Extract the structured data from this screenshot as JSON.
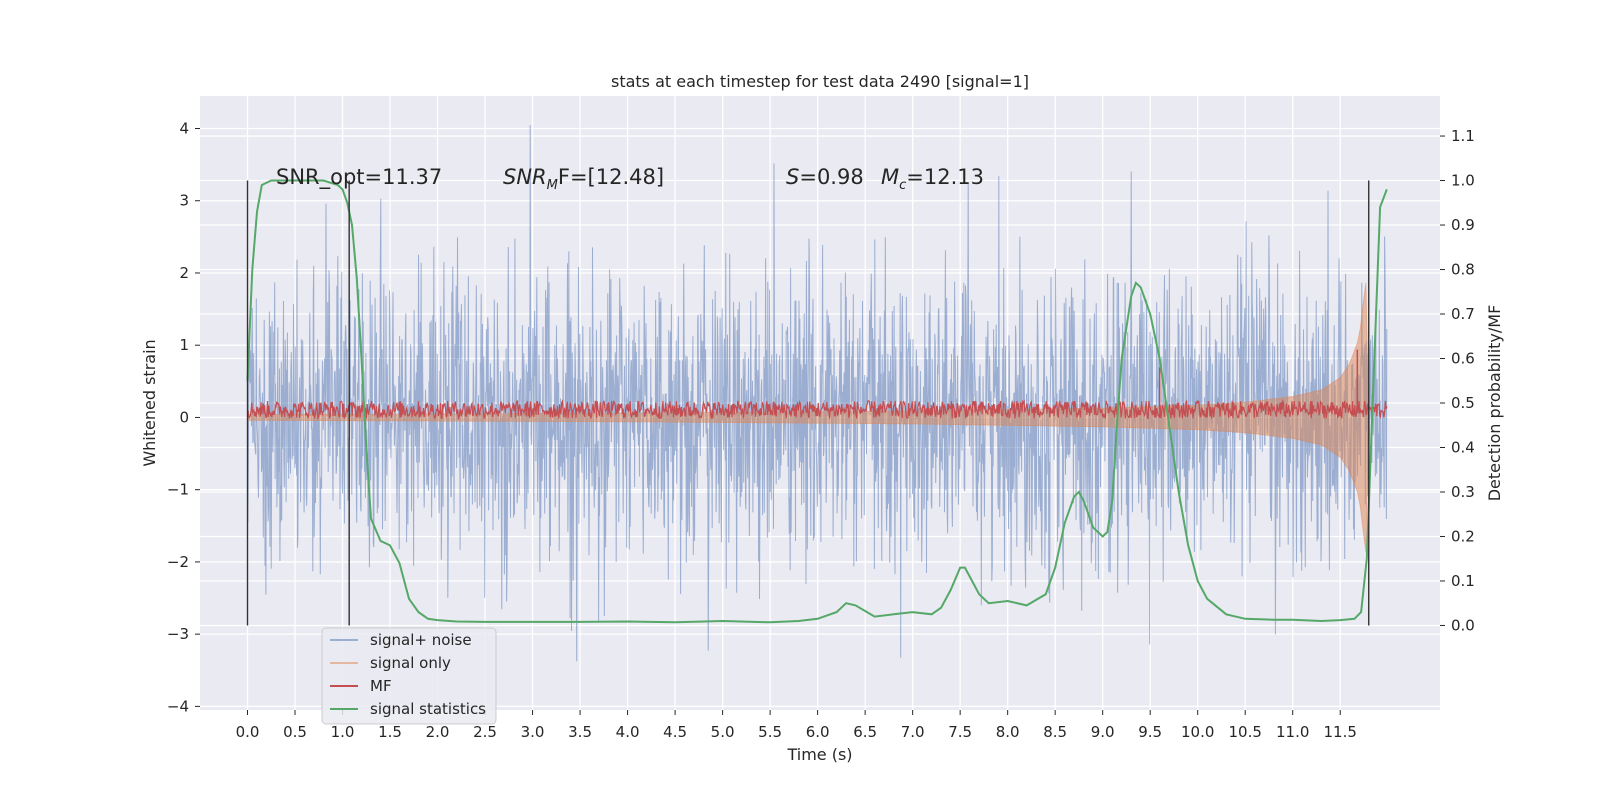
{
  "chart_data": {
    "type": "line",
    "title": "stats at each timestep for test data 2490 [signal=1]",
    "xlabel": "Time (s)",
    "ylabel_left": "Whitened strain",
    "ylabel_right": "Detection probability/MF",
    "xlim": [
      -0.5,
      12.55
    ],
    "ylim_left": [
      -4.05,
      4.45
    ],
    "ylim_right": [
      -0.19,
      1.19
    ],
    "x_ticks": [
      0.0,
      0.5,
      1.0,
      1.5,
      2.0,
      2.5,
      3.0,
      3.5,
      4.0,
      4.5,
      5.0,
      5.5,
      6.0,
      6.5,
      7.0,
      7.5,
      8.0,
      8.5,
      9.0,
      9.5,
      10.0,
      10.5,
      11.0,
      11.5
    ],
    "x_tick_labels": [
      "0.0",
      "0.5",
      "1.0",
      "1.5",
      "2.0",
      "2.5",
      "3.0",
      "3.5",
      "4.0",
      "4.5",
      "5.0",
      "5.5",
      "6.0",
      "6.5",
      "7.0",
      "7.5",
      "8.0",
      "8.5",
      "9.0",
      "9.5",
      "10.0",
      "10.5",
      "11.0",
      "11.5"
    ],
    "y_left_ticks": [
      4,
      3,
      2,
      1,
      0,
      -1,
      -2,
      -3,
      -4
    ],
    "y_left_tick_labels": [
      "4",
      "3",
      "2",
      "1",
      "0",
      "−1",
      "−2",
      "−3",
      "−4"
    ],
    "y_right_ticks": [
      1.1,
      1.0,
      0.9,
      0.8,
      0.7,
      0.6,
      0.5,
      0.4,
      0.3,
      0.2,
      0.1,
      0.0
    ],
    "y_right_tick_labels": [
      "1.1",
      "1.0",
      "0.9",
      "0.8",
      "0.7",
      "0.6",
      "0.5",
      "0.4",
      "0.3",
      "0.2",
      "0.1",
      "0.0"
    ],
    "grid": true,
    "legend_position": "lower-left",
    "annotations": {
      "snr_opt": "SNR_opt=11.37",
      "snr_mf_symbol": "SNR",
      "snr_mf_sub": "M",
      "snr_mf_value": "F=[12.48]",
      "s_symbol": "S",
      "s_value": "=0.98",
      "mc_symbol": "M",
      "mc_sub": "c",
      "mc_value": "=12.13"
    },
    "vertical_markers": [
      0.0,
      1.07,
      11.8
    ],
    "series": [
      {
        "name": "signal+ noise",
        "color": "#4c72b0",
        "axis": "left",
        "style": "noise",
        "t_start": 0.0,
        "t_end": 11.99,
        "typical_range": [
          -1.6,
          1.6
        ],
        "peak_range": [
          -3.7,
          4.1
        ]
      },
      {
        "name": "signal only",
        "color": "#dd8452",
        "axis": "left",
        "style": "chirp",
        "envelope_t": [
          0.0,
          4.0,
          7.0,
          9.0,
          10.0,
          10.5,
          11.0,
          11.3,
          11.5,
          11.6,
          11.7,
          11.77,
          11.8
        ],
        "envelope_amp": [
          0.04,
          0.06,
          0.09,
          0.13,
          0.17,
          0.21,
          0.29,
          0.38,
          0.55,
          0.75,
          1.1,
          1.9,
          0.0
        ]
      },
      {
        "name": "MF",
        "color": "#c44e52",
        "axis": "right",
        "style": "mf",
        "baseline": 0.485,
        "band": 0.02,
        "spikes_x": [
          9.6,
          11.68
        ],
        "spikes_y": [
          0.58,
          0.62
        ]
      },
      {
        "name": "signal statistics",
        "color": "#55a868",
        "axis": "right",
        "style": "line",
        "x": [
          0.0,
          0.05,
          0.1,
          0.15,
          0.25,
          0.4,
          0.6,
          0.8,
          0.95,
          1.0,
          1.05,
          1.1,
          1.15,
          1.2,
          1.25,
          1.3,
          1.4,
          1.5,
          1.6,
          1.7,
          1.8,
          1.9,
          2.0,
          2.2,
          2.5,
          3.0,
          3.5,
          4.0,
          4.5,
          5.0,
          5.5,
          5.8,
          6.0,
          6.2,
          6.3,
          6.4,
          6.6,
          6.8,
          7.0,
          7.2,
          7.3,
          7.4,
          7.5,
          7.55,
          7.6,
          7.7,
          7.8,
          8.0,
          8.2,
          8.4,
          8.5,
          8.6,
          8.7,
          8.75,
          8.8,
          8.9,
          9.0,
          9.05,
          9.1,
          9.15,
          9.2,
          9.3,
          9.35,
          9.4,
          9.5,
          9.6,
          9.7,
          9.8,
          9.9,
          10.0,
          10.1,
          10.3,
          10.5,
          10.8,
          11.0,
          11.3,
          11.5,
          11.65,
          11.72,
          11.78,
          11.85,
          11.92,
          11.99
        ],
        "y": [
          0.55,
          0.8,
          0.93,
          0.99,
          1.0,
          1.0,
          1.0,
          1.0,
          0.99,
          0.98,
          0.95,
          0.9,
          0.78,
          0.6,
          0.4,
          0.24,
          0.19,
          0.18,
          0.14,
          0.06,
          0.03,
          0.015,
          0.012,
          0.009,
          0.008,
          0.008,
          0.008,
          0.009,
          0.007,
          0.01,
          0.007,
          0.01,
          0.015,
          0.03,
          0.05,
          0.045,
          0.02,
          0.025,
          0.03,
          0.025,
          0.04,
          0.08,
          0.13,
          0.13,
          0.11,
          0.07,
          0.05,
          0.055,
          0.045,
          0.07,
          0.13,
          0.23,
          0.29,
          0.3,
          0.28,
          0.22,
          0.2,
          0.21,
          0.28,
          0.45,
          0.6,
          0.74,
          0.77,
          0.76,
          0.7,
          0.6,
          0.45,
          0.3,
          0.18,
          0.1,
          0.06,
          0.025,
          0.015,
          0.013,
          0.013,
          0.01,
          0.012,
          0.015,
          0.03,
          0.15,
          0.55,
          0.94,
          0.98
        ]
      }
    ]
  },
  "colors": {
    "axes_bg": "#eaeaf2",
    "grid": "#ffffff",
    "marker_line": "#333333",
    "text": "#262626"
  }
}
